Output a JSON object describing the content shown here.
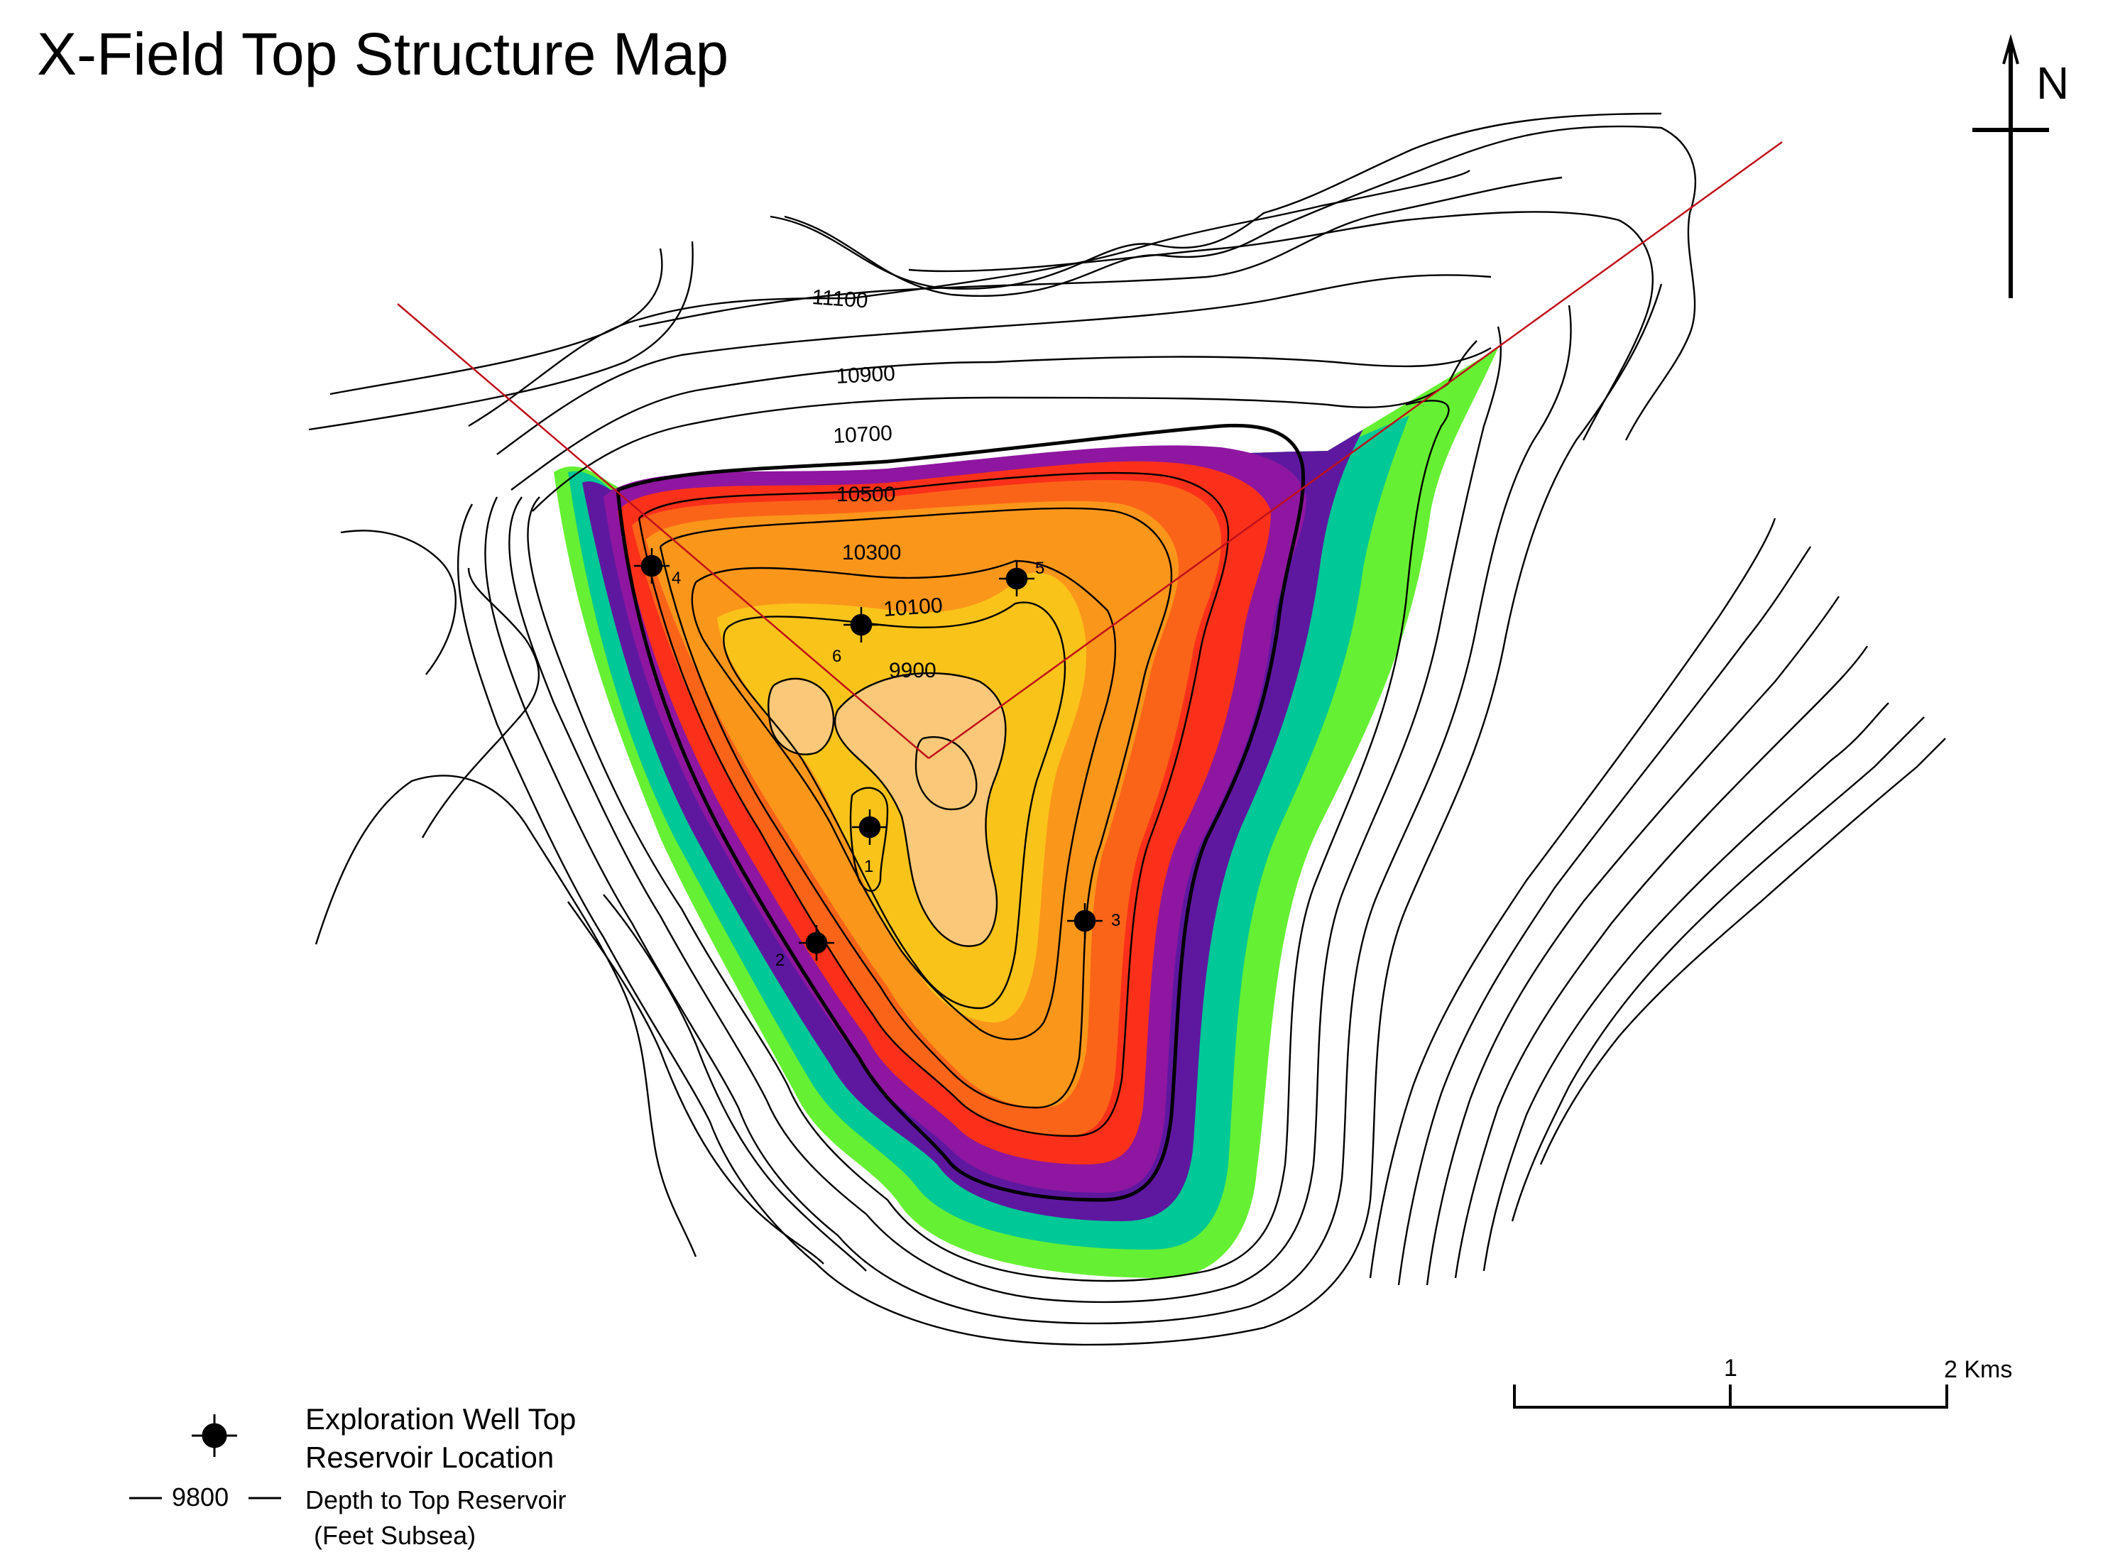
{
  "title": "X-Field Top Structure Map",
  "north_label": "N",
  "contour_labels": [
    "11100",
    "10900",
    "10700",
    "10500",
    "10300",
    "10100",
    "9900"
  ],
  "wells": [
    {
      "id": "1",
      "label": "1"
    },
    {
      "id": "2",
      "label": "2"
    },
    {
      "id": "3",
      "label": "3"
    },
    {
      "id": "4",
      "label": "4"
    },
    {
      "id": "5",
      "label": "5"
    },
    {
      "id": "6",
      "label": "6"
    }
  ],
  "scale_bar": {
    "mid_label": "1",
    "end_label": "2 Kms"
  },
  "legend": {
    "well_line1": "Exploration Well Top",
    "well_line2": "Reservoir Location",
    "contour_value": "9800",
    "contour_line1": "Depth to Top Reservoir",
    "contour_line2": "(Feet Subsea)"
  },
  "colors": {
    "green": "#66f033",
    "teal": "#00c896",
    "indigo": "#5e18a0",
    "purple": "#8f16a0",
    "red": "#fa301a",
    "orange_red": "#fa6418",
    "orange": "#fa961a",
    "gold": "#fac31a",
    "peach": "#fac878",
    "fault": "#c0101a"
  }
}
